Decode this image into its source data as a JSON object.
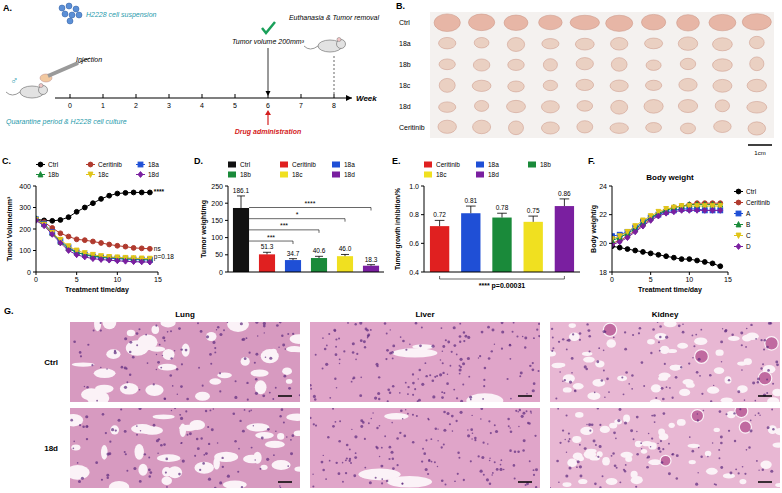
{
  "panel_labels": [
    "A.",
    "B.",
    "C.",
    "D.",
    "E.",
    "F.",
    "G."
  ],
  "timeline": {
    "cells_label": "H2228 cell suspension",
    "sex": "♂",
    "quarantine_label": "Quarantine period & H2228 cell culture",
    "axis_label": "Week",
    "weeks": [
      0,
      1,
      2,
      3,
      4,
      5,
      6,
      7,
      8
    ],
    "events": [
      {
        "label": "Injection",
        "week": 0
      },
      {
        "label": "Tumor volume 200mm³",
        "week": 6
      },
      {
        "label": "Drug administration",
        "week": 6
      },
      {
        "label": "Euthanasia & Tumor removal",
        "week": 8
      }
    ]
  },
  "photos": {
    "rows": [
      {
        "label": "Ctrl",
        "tumors": 10
      },
      {
        "label": "18a",
        "tumors": 10
      },
      {
        "label": "18b",
        "tumors": 10
      },
      {
        "label": "18c",
        "tumors": 10
      },
      {
        "label": "18d",
        "tumors": 10
      },
      {
        "label": "Ceritinib",
        "tumors": 10
      }
    ],
    "scale_bar": "1cm"
  },
  "chart_data": [
    {
      "type": "line",
      "x_label": "Treatment time/day",
      "y_label": "Tumor Volume/mm³",
      "x": [
        0,
        1,
        2,
        3,
        4,
        5,
        6,
        7,
        8,
        9,
        10,
        11,
        12,
        13,
        14
      ],
      "xlim": [
        0,
        15
      ],
      "xticks": [
        0,
        5,
        10,
        15
      ],
      "ylim": [
        0,
        400
      ],
      "yticks": [
        0,
        100,
        200,
        300,
        400
      ],
      "legend": "top",
      "series": [
        {
          "name": "Ctrl",
          "color": "#000000",
          "marker": "circle",
          "values": [
            245,
            240,
            238,
            242,
            255,
            280,
            300,
            320,
            340,
            355,
            365,
            368,
            370,
            370,
            370
          ]
        },
        {
          "name": "Ceritinib",
          "color": "#b03a2e",
          "marker": "circle",
          "values": [
            245,
            232,
            205,
            180,
            165,
            152,
            148,
            142,
            135,
            128,
            122,
            118,
            112,
            110,
            108
          ]
        },
        {
          "name": "18a",
          "color": "#1f4fd6",
          "marker": "square",
          "values": [
            245,
            225,
            185,
            145,
            115,
            92,
            80,
            72,
            68,
            64,
            62,
            60,
            58,
            57,
            56
          ]
        },
        {
          "name": "18b",
          "color": "#1a8a3a",
          "marker": "triangle",
          "values": [
            248,
            222,
            180,
            140,
            110,
            90,
            82,
            75,
            70,
            68,
            66,
            63,
            62,
            60,
            60
          ]
        },
        {
          "name": "18c",
          "color": "#e0c419",
          "marker": "triangle-down",
          "values": [
            242,
            220,
            182,
            150,
            120,
            100,
            88,
            80,
            74,
            70,
            68,
            66,
            64,
            63,
            62
          ]
        },
        {
          "name": "18d",
          "color": "#7a1fa0",
          "marker": "diamond",
          "values": [
            240,
            215,
            175,
            135,
            100,
            80,
            70,
            62,
            58,
            55,
            52,
            50,
            48,
            47,
            46
          ]
        }
      ],
      "annotations": [
        "****",
        "ns",
        "p=0.18"
      ]
    },
    {
      "type": "bar",
      "y_label": "Tumor weight/mg",
      "categories": [
        "Ctrl",
        "Ceritinib",
        "18a",
        "18b",
        "18c",
        "18d"
      ],
      "values": [
        186.1,
        51.3,
        34.7,
        40.6,
        46.0,
        18.3
      ],
      "value_labels": [
        "186.1",
        "51.3",
        "34.7",
        "40.6",
        "46.0",
        "18.3"
      ],
      "errors": [
        35,
        6,
        4,
        5,
        5,
        3
      ],
      "colors": [
        "#111111",
        "#e02020",
        "#1f4fd6",
        "#1a8a3a",
        "#f0e020",
        "#7a1fa0"
      ],
      "ylim": [
        0,
        250
      ],
      "yticks": [
        0,
        50,
        100,
        150,
        200,
        250
      ],
      "data_labels": true,
      "legend": "top",
      "tick_labels": "y",
      "annotations": [
        {
          "text": "***",
          "from": "Ctrl",
          "to": "18a"
        },
        {
          "text": "***",
          "from": "Ctrl",
          "to": "18b"
        },
        {
          "text": "*",
          "from": "Ctrl",
          "to": "18c"
        },
        {
          "text": "****",
          "from": "Ctrl",
          "to": "18d"
        }
      ]
    },
    {
      "type": "bar",
      "y_label": "Tumor growth inhibition/%",
      "categories": [
        "Ceritinib",
        "18a",
        "18b",
        "18c",
        "18d"
      ],
      "values": [
        0.72,
        0.81,
        0.78,
        0.75,
        0.86
      ],
      "errors": [
        0.04,
        0.05,
        0.03,
        0.04,
        0.05
      ],
      "colors": [
        "#e02020",
        "#1f4fd6",
        "#1a8a3a",
        "#f0e020",
        "#7a1fa0"
      ],
      "ylim": [
        0.4,
        1.0
      ],
      "yticks": [
        0.4,
        0.6,
        0.8,
        {
          "value": 1,
          "label": "1.0"
        }
      ],
      "data_labels": true,
      "legend": "top",
      "tick_labels": "y",
      "annotations": [
        {
          "text": "**** p=0.00031",
          "from": "Ceritinib",
          "to": "18d"
        }
      ]
    },
    {
      "type": "line",
      "title": "Body weight",
      "x_label": "Treatment time/day",
      "y_label": "Body weight/g",
      "x": [
        0,
        1,
        2,
        3,
        4,
        5,
        6,
        7,
        8,
        9,
        10,
        11,
        12,
        13,
        14
      ],
      "xlim": [
        0,
        15
      ],
      "xticks": [
        0,
        5,
        10,
        15
      ],
      "ylim": [
        18,
        24
      ],
      "yticks": [
        18,
        20,
        22,
        24
      ],
      "legend": "right",
      "series": [
        {
          "name": "Ctrl",
          "color": "#000000",
          "marker": "circle",
          "values": [
            19.8,
            19.7,
            19.6,
            19.5,
            19.4,
            19.3,
            19.2,
            19.1,
            19.0,
            18.9,
            18.9,
            18.8,
            18.7,
            18.6,
            18.4
          ]
        },
        {
          "name": "Ceritinib",
          "color": "#b03a2e",
          "marker": "circle",
          "values": [
            20.0,
            20.2,
            20.5,
            20.9,
            21.3,
            21.7,
            22.0,
            22.3,
            22.5,
            22.6,
            22.7,
            22.8,
            22.8,
            22.8,
            22.8
          ]
        },
        {
          "name": "A",
          "color": "#1f4fd6",
          "marker": "square",
          "values": [
            20.5,
            20.6,
            20.8,
            21.1,
            21.5,
            21.8,
            22.0,
            22.2,
            22.3,
            22.4,
            22.4,
            22.4,
            22.3,
            22.3,
            22.3
          ]
        },
        {
          "name": "B",
          "color": "#1a8a3a",
          "marker": "triangle",
          "values": [
            20.2,
            20.4,
            20.7,
            21.0,
            21.4,
            21.8,
            22.1,
            22.3,
            22.5,
            22.6,
            22.7,
            22.7,
            22.7,
            22.7,
            22.7
          ]
        },
        {
          "name": "C",
          "color": "#e0c419",
          "marker": "triangle-down",
          "values": [
            20.3,
            20.5,
            20.8,
            21.2,
            21.6,
            21.9,
            22.2,
            22.4,
            22.5,
            22.6,
            22.6,
            22.6,
            22.6,
            22.6,
            22.6
          ]
        },
        {
          "name": "D",
          "color": "#7a1fa0",
          "marker": "diamond",
          "values": [
            19.9,
            20.1,
            20.4,
            20.8,
            21.2,
            21.6,
            21.9,
            22.1,
            22.2,
            22.3,
            22.3,
            22.3,
            22.3,
            22.3,
            22.3
          ]
        }
      ]
    }
  ],
  "histology": {
    "columns": [
      "Lung",
      "Liver",
      "Kidney"
    ],
    "rows": [
      "Ctrl",
      "18d"
    ]
  }
}
